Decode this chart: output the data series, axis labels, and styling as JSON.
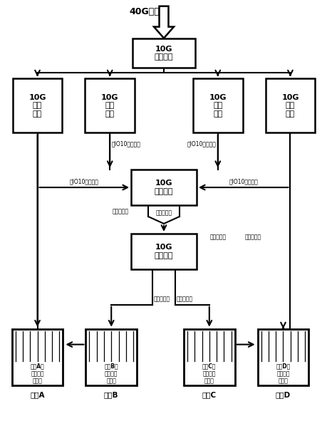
{
  "bg_color": "#ffffff",
  "top_label": "40G数据",
  "switch_label": "10G\n交换设备",
  "proc_label": "10G\n处理\n设备",
  "switch2_label": "10G\n交换设备",
  "switch3_label": "10G\n交换设备",
  "rack_labels": [
    "机架A的\n各协议解\n析板卡",
    "机架B的\n各协议解\n析板卡",
    "机架C的\n各协议解\n析板卡",
    "机架D的\n各协议解\n析板卡"
  ],
  "rack_bottom_labels": [
    "机架A",
    "机架B",
    "机架C",
    "机架D"
  ],
  "label_houIO": "后IO10个千兆口",
  "label_wanmi": "四个万兆口",
  "label_ruogan": "若干千兆口"
}
